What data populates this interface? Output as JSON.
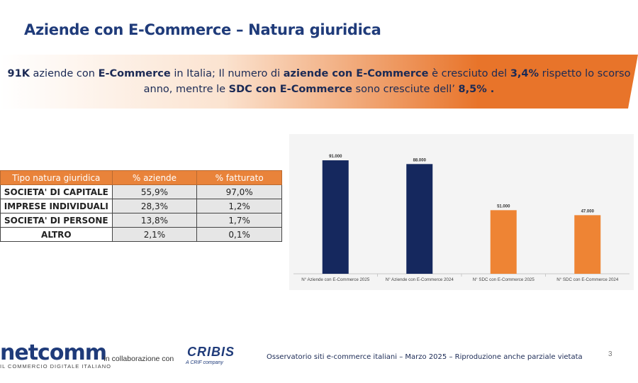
{
  "title": "Aziende con E-Commerce – Natura giuridica",
  "banner": {
    "p1": "91K",
    "p2": " aziende con ",
    "p3": "E-Commerce",
    "p4": " in Italia; Il numero di ",
    "p5": "aziende con E-Commerce",
    "p6": " è cresciuto del ",
    "p7": "3,4%",
    "p8": " rispetto lo scorso anno, mentre le ",
    "p9": "SDC con E-Commerce",
    "p10": " sono cresciute dell’ ",
    "p11": "8,5% .",
    "colors": {
      "start": "#ffffff",
      "end": "#e8742a"
    }
  },
  "table": {
    "headers": [
      "Tipo natura giuridica",
      "% aziende",
      "% fatturato"
    ],
    "rows": [
      [
        "SOCIETA' DI CAPITALE",
        "55,9%",
        "97,0%"
      ],
      [
        "IMPRESE INDIVIDUALI",
        "28,3%",
        "1,2%"
      ],
      [
        "SOCIETA' DI PERSONE",
        "13,8%",
        "1,7%"
      ],
      [
        "ALTRO",
        "2,1%",
        "0,1%"
      ]
    ]
  },
  "chart_data": {
    "type": "bar",
    "categories": [
      "N° Aziende con E-Commerce 2025",
      "N° Aziende con E-Commerce 2024",
      "N° SDC con E-Commerce 2025",
      "N° SDC con E-Commerce 2024"
    ],
    "values": [
      91000,
      88000,
      51000,
      47000
    ],
    "data_labels": [
      "91.000",
      "88.000",
      "51.000",
      "47.000"
    ],
    "colors": [
      "#15285e",
      "#15285e",
      "#ee8434",
      "#ee8434"
    ],
    "ylim": [
      0,
      95000
    ],
    "grid": false
  },
  "footer": {
    "logo": "netcomm",
    "logo_sub": "IL COMMERCIO DIGITALE ITALIANO",
    "collab": "In collaborazione con",
    "partner": "CRIBIS",
    "partner_sub": "A CRIF company",
    "note": "Osservatorio siti e-commerce italiani – Marzo 2025 – Riproduzione anche parziale vietata",
    "page": "3"
  }
}
